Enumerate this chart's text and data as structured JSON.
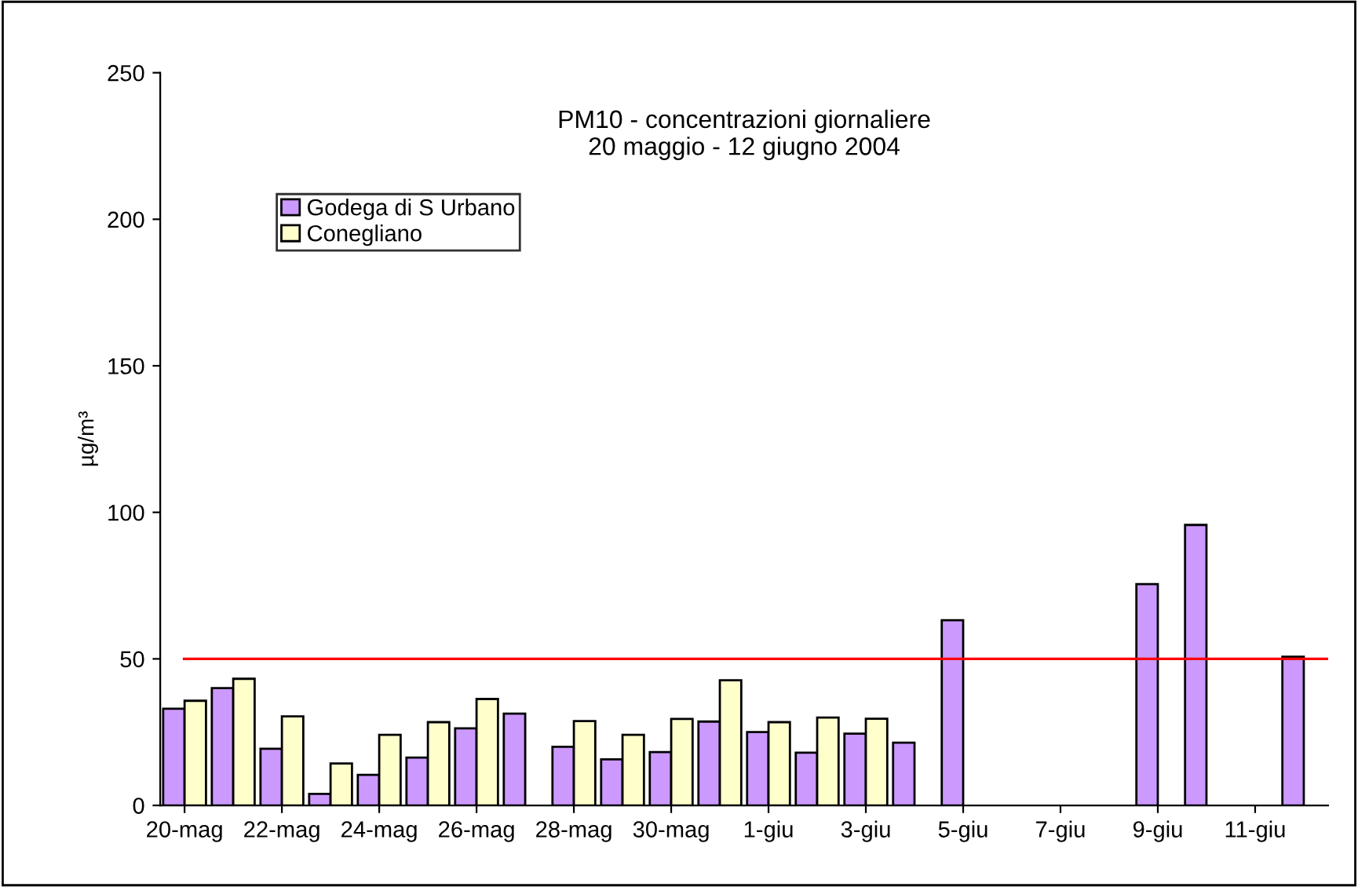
{
  "chart_data": {
    "type": "bar",
    "title": "PM10 - concentrazioni giornaliere\n20 maggio - 12 giugno 2004",
    "ylabel": "µg/m³",
    "categories": [
      "20-mag",
      null,
      "22-mag",
      null,
      "24-mag",
      null,
      "26-mag",
      null,
      "28-mag",
      null,
      "30-mag",
      null,
      "1-giu",
      null,
      "3-giu",
      null,
      "5-giu",
      null,
      "7-giu",
      null,
      "9-giu",
      null,
      "11-giu",
      null
    ],
    "series": [
      {
        "name": "Godega di S Urbano",
        "color": "#cc99ff",
        "values": [
          33,
          40,
          19.3,
          3.9,
          10.4,
          16.3,
          26.3,
          31.3,
          20,
          15.7,
          18.2,
          28.6,
          25,
          18,
          24.5,
          21.4,
          63.2,
          null,
          null,
          null,
          75.5,
          95.7,
          null,
          50.7
        ]
      },
      {
        "name": "Conegliano",
        "color": "#ffffcc",
        "values": [
          35.7,
          43.2,
          30.4,
          14.3,
          24.1,
          28.4,
          36.3,
          null,
          28.8,
          24.1,
          29.5,
          42.7,
          28.4,
          30,
          29.6,
          null,
          null,
          null,
          null,
          null,
          null,
          null,
          null,
          null
        ]
      }
    ],
    "ylim": [
      0,
      250
    ],
    "yticks": [
      0,
      50,
      100,
      150,
      200,
      250
    ],
    "ref_lines": [
      {
        "axis": "y",
        "value": 50,
        "color": "#ff0000",
        "line_style": "solid"
      }
    ],
    "grid": false,
    "legend": "top left"
  }
}
